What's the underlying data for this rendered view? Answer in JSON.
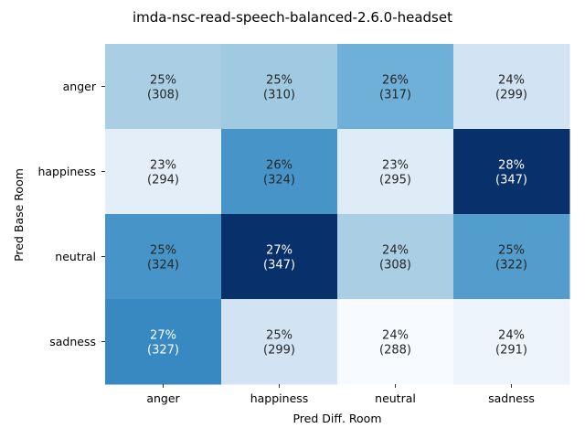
{
  "chart_data": {
    "type": "heatmap",
    "title": "imda-nsc-read-speech-balanced-2.6.0-headset",
    "xlabel": "Pred Diff. Room",
    "ylabel": "Pred Base Room",
    "x_categories": [
      "anger",
      "happiness",
      "neutral",
      "sadness"
    ],
    "y_categories": [
      "anger",
      "happiness",
      "neutral",
      "sadness"
    ],
    "cells": [
      [
        {
          "pct": "25%",
          "count": 308
        },
        {
          "pct": "25%",
          "count": 310
        },
        {
          "pct": "26%",
          "count": 317
        },
        {
          "pct": "24%",
          "count": 299
        }
      ],
      [
        {
          "pct": "23%",
          "count": 294
        },
        {
          "pct": "26%",
          "count": 324
        },
        {
          "pct": "23%",
          "count": 295
        },
        {
          "pct": "28%",
          "count": 347
        }
      ],
      [
        {
          "pct": "25%",
          "count": 324
        },
        {
          "pct": "27%",
          "count": 347
        },
        {
          "pct": "24%",
          "count": 308
        },
        {
          "pct": "25%",
          "count": 322
        }
      ],
      [
        {
          "pct": "27%",
          "count": 327
        },
        {
          "pct": "25%",
          "count": 299
        },
        {
          "pct": "24%",
          "count": 288
        },
        {
          "pct": "24%",
          "count": 291
        }
      ]
    ],
    "colormap": "Blues",
    "colorbar": false,
    "grid": false
  }
}
